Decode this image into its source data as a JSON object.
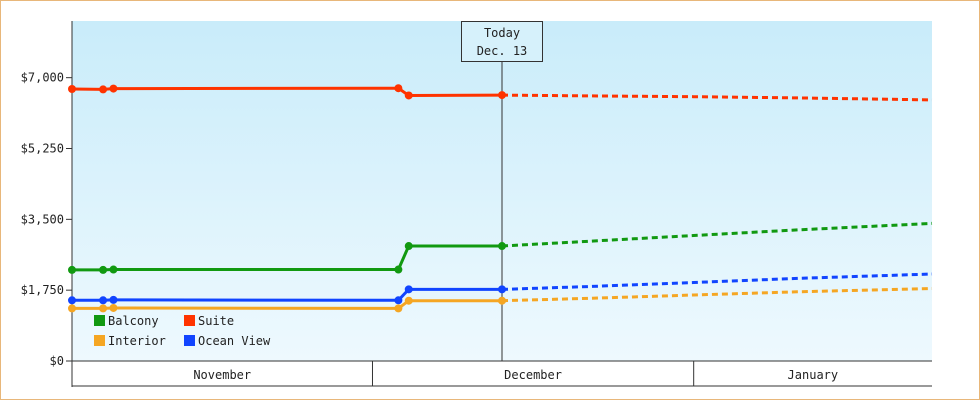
{
  "chart_data": {
    "type": "line",
    "title": "",
    "xlabel": "",
    "ylabel": "",
    "ylim": [
      0,
      8400
    ],
    "xlim": [
      0,
      83
    ],
    "y_ticks": [
      {
        "value": 0,
        "label": "$0"
      },
      {
        "value": 1750,
        "label": "$1,750"
      },
      {
        "value": 3500,
        "label": "$3,500"
      },
      {
        "value": 5250,
        "label": "$5,250"
      },
      {
        "value": 7000,
        "label": "$7,000"
      }
    ],
    "months": [
      {
        "label": "November",
        "start": 0,
        "end": 29
      },
      {
        "label": "December",
        "start": 29,
        "end": 60
      },
      {
        "label": "January",
        "start": 60,
        "end": 83
      }
    ],
    "today": {
      "label": "Today",
      "date": "Dec. 13",
      "x": 41.5
    },
    "grid": false,
    "legend_position": "bottom-left",
    "series": [
      {
        "name": "Suite",
        "color": "#ff3300",
        "actual": [
          [
            0,
            6720
          ],
          [
            3,
            6710
          ],
          [
            4,
            6730
          ],
          [
            31.5,
            6740
          ],
          [
            32.5,
            6560
          ],
          [
            41.5,
            6570
          ]
        ],
        "projected": [
          [
            41.5,
            6570
          ],
          [
            50,
            6550
          ],
          [
            60,
            6530
          ],
          [
            70,
            6500
          ],
          [
            83,
            6450
          ]
        ]
      },
      {
        "name": "Balcony",
        "color": "#119911",
        "actual": [
          [
            0,
            2250
          ],
          [
            3,
            2250
          ],
          [
            4,
            2260
          ],
          [
            31.5,
            2260
          ],
          [
            32.5,
            2840
          ],
          [
            41.5,
            2840
          ]
        ],
        "projected": [
          [
            41.5,
            2840
          ],
          [
            50,
            2960
          ],
          [
            60,
            3100
          ],
          [
            70,
            3240
          ],
          [
            83,
            3400
          ]
        ]
      },
      {
        "name": "Ocean View",
        "color": "#1144ff",
        "actual": [
          [
            0,
            1500
          ],
          [
            3,
            1500
          ],
          [
            4,
            1510
          ],
          [
            31.5,
            1500
          ],
          [
            32.5,
            1770
          ],
          [
            41.5,
            1770
          ]
        ],
        "projected": [
          [
            41.5,
            1770
          ],
          [
            50,
            1840
          ],
          [
            60,
            1940
          ],
          [
            70,
            2040
          ],
          [
            83,
            2150
          ]
        ]
      },
      {
        "name": "Interior",
        "color": "#f5a623",
        "actual": [
          [
            0,
            1300
          ],
          [
            3,
            1300
          ],
          [
            4,
            1310
          ],
          [
            31.5,
            1300
          ],
          [
            32.5,
            1490
          ],
          [
            41.5,
            1490
          ]
        ],
        "projected": [
          [
            41.5,
            1490
          ],
          [
            50,
            1550
          ],
          [
            60,
            1630
          ],
          [
            70,
            1710
          ],
          [
            83,
            1790
          ]
        ]
      }
    ],
    "legend": [
      {
        "name": "Balcony",
        "color": "#119911"
      },
      {
        "name": "Suite",
        "color": "#ff3300"
      },
      {
        "name": "Interior",
        "color": "#f5a623"
      },
      {
        "name": "Ocean View",
        "color": "#1144ff"
      }
    ]
  }
}
